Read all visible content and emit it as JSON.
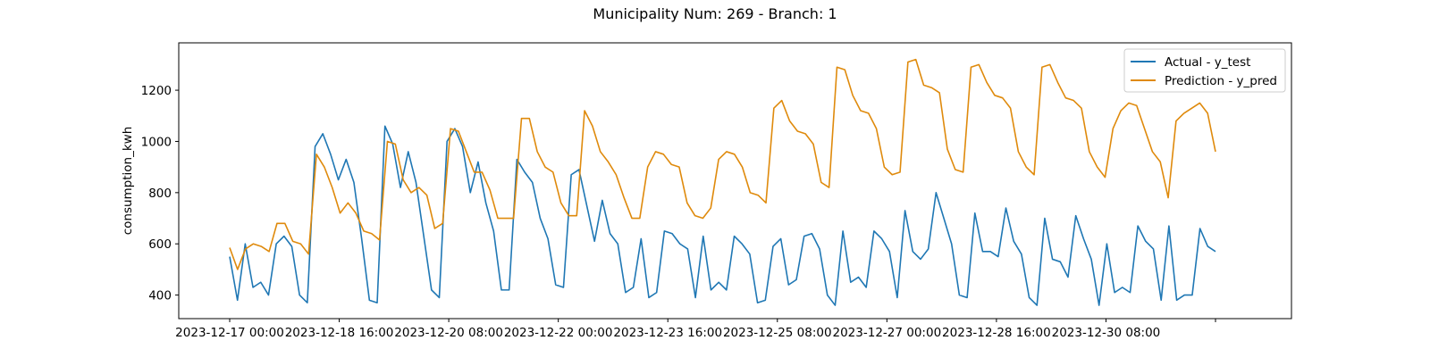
{
  "chart_data": {
    "type": "line",
    "title": "Municipality Num: 269 - Branch: 1",
    "xlabel": "",
    "ylabel": "consumption_kwh",
    "ylim": [
      308,
      1385
    ],
    "yticks": [
      400,
      600,
      800,
      1000,
      1200
    ],
    "x_start": "2023-12-17 00:00",
    "x_step_hours": 4,
    "xticks": [
      {
        "label": "2023-12-17 00:00",
        "index": 0
      },
      {
        "label": "2023-12-18 16:00",
        "index": 10
      },
      {
        "label": "2023-12-20 08:00",
        "index": 20
      },
      {
        "label": "2023-12-22 00:00",
        "index": 30
      },
      {
        "label": "2023-12-23 16:00",
        "index": 40
      },
      {
        "label": "2023-12-25 08:00",
        "index": 50
      },
      {
        "label": "2023-12-27 00:00",
        "index": 60
      },
      {
        "label": "2023-12-28 16:00",
        "index": 70
      },
      {
        "label": "2023-12-30 08:00",
        "index": 80
      },
      {
        "label": "",
        "index": 90
      }
    ],
    "grid": false,
    "legend_position": "top-right",
    "series": [
      {
        "name": "Actual - y_test",
        "color": "#1f77b4",
        "values": [
          550,
          380,
          600,
          430,
          450,
          400,
          600,
          630,
          590,
          400,
          370,
          980,
          1030,
          950,
          850,
          930,
          840,
          620,
          380,
          370,
          1060,
          990,
          820,
          960,
          840,
          630,
          420,
          390,
          1000,
          1050,
          980,
          800,
          920,
          760,
          650,
          420,
          420,
          930,
          880,
          840,
          700,
          620,
          440,
          430,
          870,
          890,
          750,
          610,
          770,
          640,
          600,
          410,
          430,
          620,
          390,
          410,
          650,
          640,
          600,
          580,
          390,
          630,
          420,
          450,
          420,
          630,
          600,
          560,
          370,
          380,
          590,
          620,
          440,
          460,
          630,
          640,
          580,
          400,
          360,
          650,
          450,
          470,
          430,
          650,
          620,
          570,
          390,
          730,
          570,
          540,
          580,
          800,
          700,
          600,
          400,
          390,
          720,
          570,
          570,
          550,
          740,
          610,
          560,
          390,
          360,
          700,
          540,
          530,
          470,
          710,
          620,
          540,
          360,
          600,
          410,
          430,
          410,
          670,
          610,
          580,
          380,
          670,
          380,
          400,
          400,
          660,
          590,
          570
        ]
      },
      {
        "name": "Prediction - y_pred",
        "color": "#df8a0c",
        "values": [
          585,
          500,
          580,
          600,
          590,
          570,
          680,
          680,
          610,
          600,
          560,
          950,
          900,
          820,
          720,
          760,
          720,
          650,
          640,
          615,
          1000,
          990,
          850,
          800,
          820,
          790,
          660,
          680,
          1050,
          1040,
          960,
          880,
          880,
          810,
          700,
          700,
          700,
          1090,
          1090,
          960,
          900,
          880,
          760,
          710,
          710,
          1120,
          1060,
          960,
          920,
          870,
          780,
          700,
          700,
          900,
          960,
          950,
          910,
          900,
          760,
          710,
          700,
          740,
          930,
          960,
          950,
          900,
          800,
          790,
          760,
          1130,
          1160,
          1080,
          1040,
          1030,
          990,
          840,
          820,
          1290,
          1280,
          1180,
          1120,
          1110,
          1050,
          900,
          870,
          880,
          1310,
          1320,
          1220,
          1210,
          1190,
          970,
          890,
          880,
          1290,
          1300,
          1230,
          1180,
          1170,
          1130,
          960,
          900,
          870,
          1290,
          1300,
          1230,
          1170,
          1160,
          1130,
          960,
          900,
          860,
          1050,
          1120,
          1150,
          1140,
          1050,
          960,
          920,
          780,
          1080,
          1110,
          1130,
          1150,
          1110,
          960
        ]
      }
    ]
  }
}
